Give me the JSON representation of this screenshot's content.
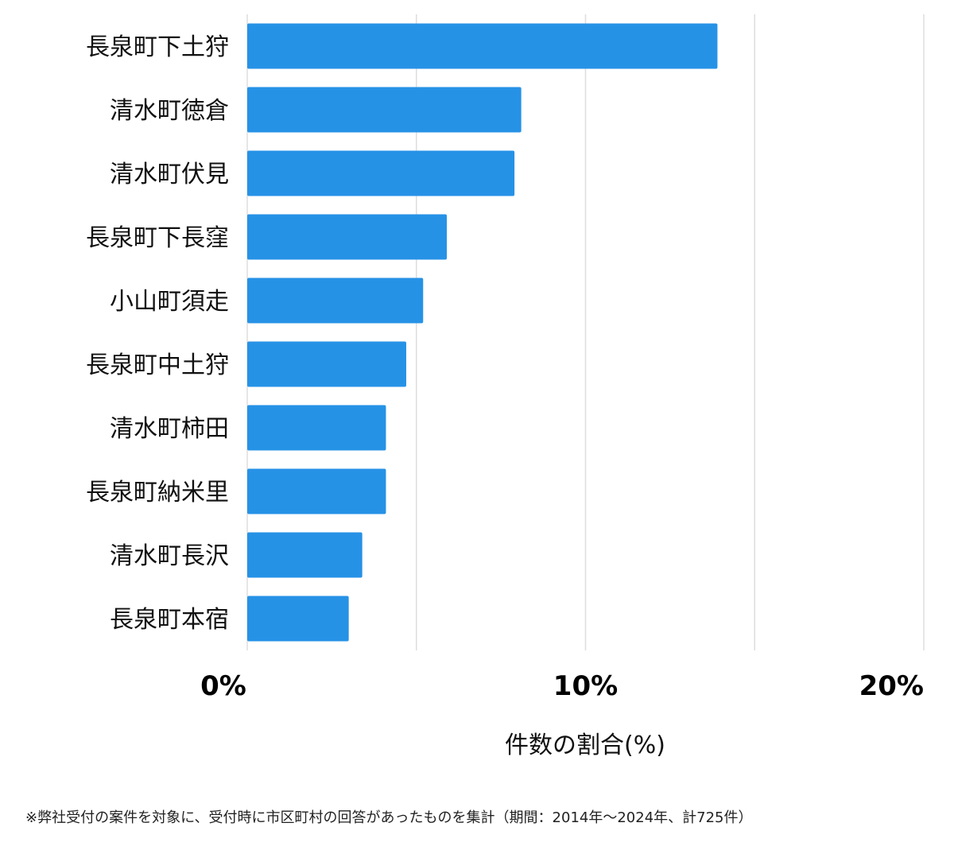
{
  "chart_data": {
    "type": "bar",
    "orientation": "horizontal",
    "categories": [
      "長泉町下土狩",
      "清水町徳倉",
      "清水町伏見",
      "長泉町下長窪",
      "小山町須走",
      "長泉町中土狩",
      "清水町柿田",
      "長泉町納米里",
      "清水町長沢",
      "長泉町本宿"
    ],
    "values": [
      13.9,
      8.1,
      7.9,
      5.9,
      5.2,
      4.7,
      4.1,
      4.1,
      3.4,
      3.0
    ],
    "xlim": [
      0,
      20
    ],
    "xticks": [
      0,
      10,
      20
    ],
    "tick_labels": [
      "0%",
      "10%",
      "20%"
    ],
    "gridlines": [
      0,
      5,
      10,
      15,
      20
    ],
    "xlabel": "件数の割合(%)",
    "ylabel": "",
    "title": "",
    "grid": true,
    "bar_color": "#2692e6",
    "grid_color": "#dddddd"
  },
  "footnote": "※弊社受付の案件を対象に、受付時に市区町村の回答があったものを集計（期間：2014年〜2024年、計725件）"
}
